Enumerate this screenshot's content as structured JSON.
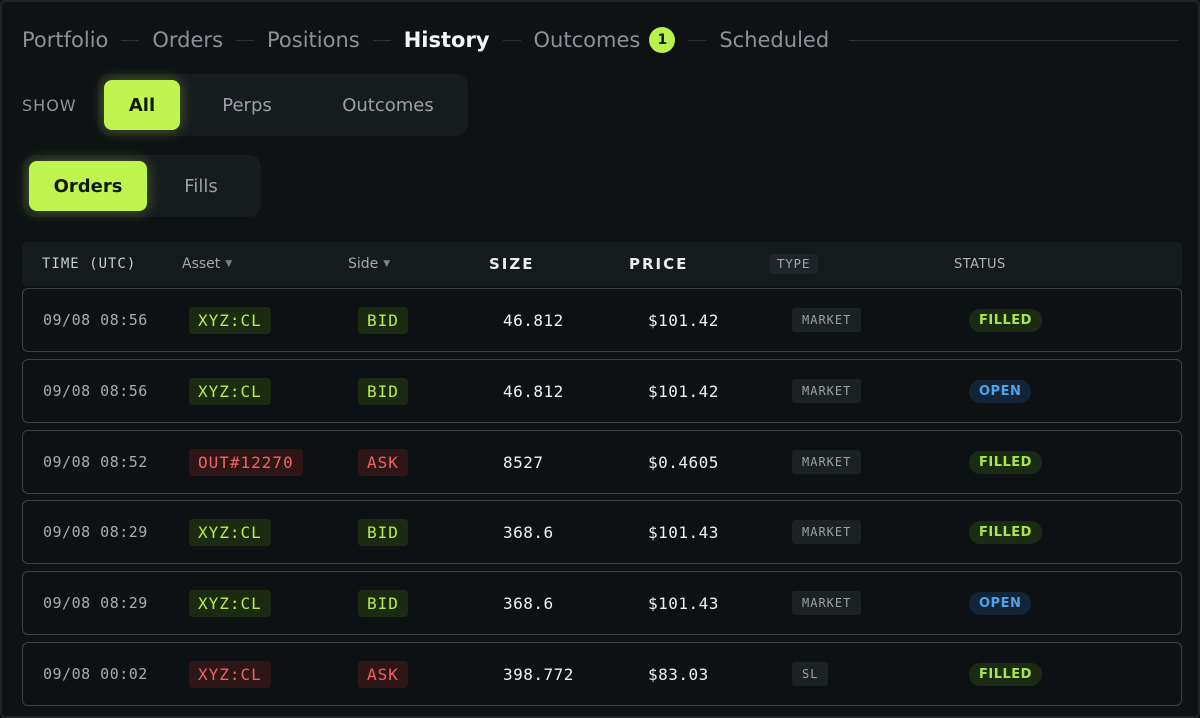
{
  "nav": {
    "tabs": [
      {
        "label": "Portfolio"
      },
      {
        "label": "Orders"
      },
      {
        "label": "Positions"
      },
      {
        "label": "History"
      },
      {
        "label": "Outcomes",
        "badge": "1"
      },
      {
        "label": "Scheduled"
      }
    ],
    "active": "History"
  },
  "show_filter": {
    "label": "SHOW",
    "options": [
      "All",
      "Perps",
      "Outcomes"
    ],
    "selected": "All"
  },
  "view_toggle": {
    "options": [
      "Orders",
      "Fills"
    ],
    "selected": "Orders"
  },
  "table": {
    "headers": {
      "time": "TIME (UTC)",
      "asset": "Asset",
      "side": "Side",
      "size": "SIZE",
      "price": "PRICE",
      "type": "TYPE",
      "status": "STATUS"
    },
    "rows": [
      {
        "time": "09/08 08:56",
        "asset": "XYZ:CL",
        "asset_color": "green",
        "side": "BID",
        "side_color": "green",
        "size": "46.812",
        "price": "$101.42",
        "type": "MARKET",
        "status": "FILLED",
        "status_kind": "filled"
      },
      {
        "time": "09/08 08:56",
        "asset": "XYZ:CL",
        "asset_color": "green",
        "side": "BID",
        "side_color": "green",
        "size": "46.812",
        "price": "$101.42",
        "type": "MARKET",
        "status": "OPEN",
        "status_kind": "open"
      },
      {
        "time": "09/08 08:52",
        "asset": "OUT#12270",
        "asset_color": "red",
        "side": "ASK",
        "side_color": "red",
        "size": "8527",
        "price": "$0.4605",
        "type": "MARKET",
        "status": "FILLED",
        "status_kind": "filled"
      },
      {
        "time": "09/08 08:29",
        "asset": "XYZ:CL",
        "asset_color": "green",
        "side": "BID",
        "side_color": "green",
        "size": "368.6",
        "price": "$101.43",
        "type": "MARKET",
        "status": "FILLED",
        "status_kind": "filled"
      },
      {
        "time": "09/08 08:29",
        "asset": "XYZ:CL",
        "asset_color": "green",
        "side": "BID",
        "side_color": "green",
        "size": "368.6",
        "price": "$101.43",
        "type": "MARKET",
        "status": "OPEN",
        "status_kind": "open"
      },
      {
        "time": "09/08 00:02",
        "asset": "XYZ:CL",
        "asset_color": "red",
        "side": "ASK",
        "side_color": "red",
        "size": "398.772",
        "price": "$83.03",
        "type": "SL",
        "status": "FILLED",
        "status_kind": "filled"
      }
    ]
  },
  "colors": {
    "accent": "#c0f550",
    "bid_green": "#b6ee4c",
    "ask_red": "#f06262",
    "open_blue": "#4da3f0",
    "background": "#0e1214"
  }
}
